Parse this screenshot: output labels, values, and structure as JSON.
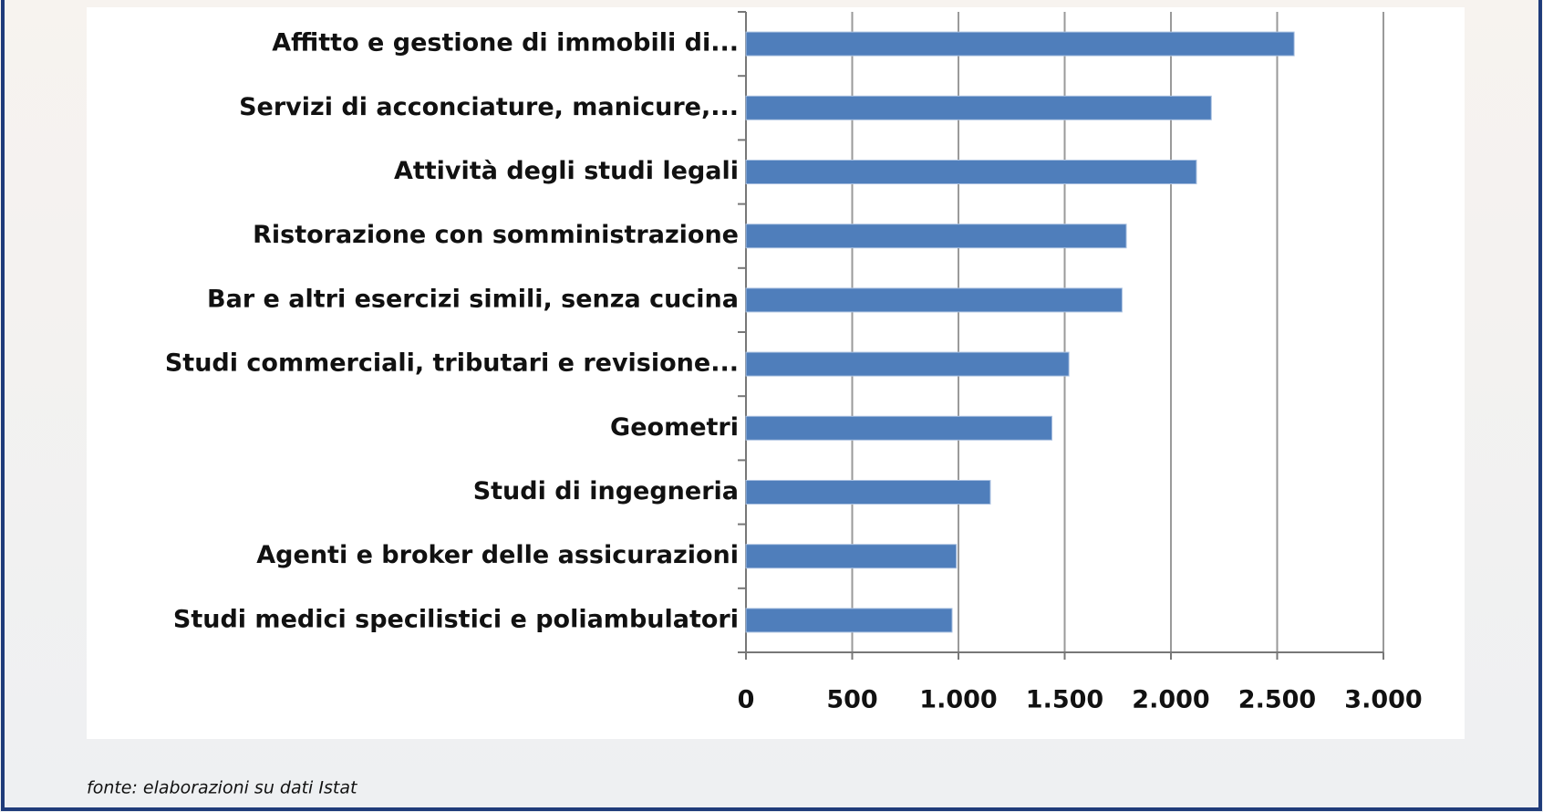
{
  "chart_data": {
    "type": "hbar",
    "categories": [
      "Affitto e gestione di immobili di...",
      "Servizi di acconciature, manicure,...",
      "Attività degli studi legali",
      "Ristorazione con somministrazione",
      "Bar e altri esercizi simili, senza cucina",
      "Studi commerciali, tributari e revisione...",
      "Geometri",
      "Studi di ingegneria",
      "Agenti e broker delle assicurazioni",
      "Studi medici specilistici e poliambulatori"
    ],
    "values": [
      2580,
      2190,
      2120,
      1790,
      1770,
      1520,
      1440,
      1150,
      990,
      970
    ],
    "color": "#4f7ebb",
    "xlim": [
      0,
      3000
    ],
    "xticks": [
      0,
      500,
      {
        "value": 1000,
        "label": "1.000"
      },
      {
        "value": 1500,
        "label": "1.500"
      },
      {
        "value": 2000,
        "label": "2.000"
      },
      {
        "value": 2500,
        "label": "2.500"
      },
      {
        "value": 3000,
        "label": "3.000"
      }
    ],
    "grid": true,
    "source": "fonte: elaborazioni su dati Istat"
  }
}
